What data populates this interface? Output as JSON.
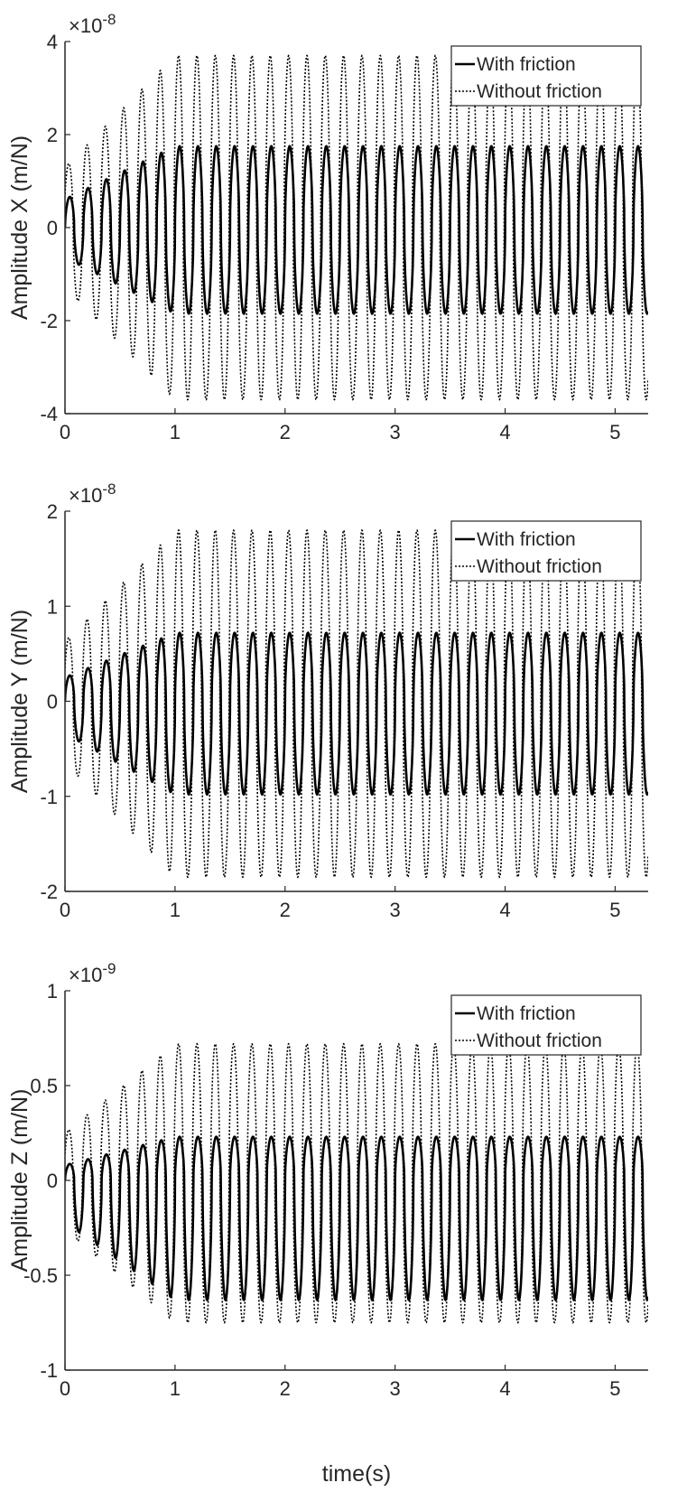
{
  "figure": {
    "xlabel": "time(s)",
    "legend_labels": [
      "With friction",
      "Without friction"
    ]
  },
  "chart_data": [
    {
      "type": "line",
      "ylabel": "Amplitude X (m/N)",
      "exponent_base": "×10",
      "exponent_power": "-8",
      "xlim": [
        0,
        5.3
      ],
      "ylim": [
        -4,
        4
      ],
      "x_ticks": [
        0,
        1,
        2,
        3,
        4,
        5
      ],
      "y_ticks": [
        -4,
        -2,
        0,
        2,
        4
      ],
      "legend_position": "top-right",
      "grid": false,
      "signal": {
        "frequency_hz": 6.0,
        "ramp_time_s": 1.0,
        "duration_s": 5.3
      },
      "series": [
        {
          "name": "With friction",
          "style": "solid",
          "color": "#000000",
          "peak_max": 1.75,
          "peak_min": -1.85
        },
        {
          "name": "Without friction",
          "style": "dotted",
          "color": "#000000",
          "peak_max": 3.7,
          "peak_min": -3.7
        }
      ]
    },
    {
      "type": "line",
      "ylabel": "Amplitude Y (m/N)",
      "exponent_base": "×10",
      "exponent_power": "-8",
      "xlim": [
        0,
        5.3
      ],
      "ylim": [
        -2,
        2
      ],
      "x_ticks": [
        0,
        1,
        2,
        3,
        4,
        5
      ],
      "y_ticks": [
        -2,
        -1,
        0,
        1,
        2
      ],
      "legend_position": "top-right",
      "grid": false,
      "signal": {
        "frequency_hz": 6.0,
        "ramp_time_s": 1.0,
        "duration_s": 5.3
      },
      "series": [
        {
          "name": "With friction",
          "style": "solid",
          "color": "#000000",
          "peak_max": 0.72,
          "peak_min": -0.98
        },
        {
          "name": "Without friction",
          "style": "dotted",
          "color": "#000000",
          "peak_max": 1.8,
          "peak_min": -1.85
        }
      ]
    },
    {
      "type": "line",
      "ylabel": "Amplitude Z (m/N)",
      "exponent_base": "×10",
      "exponent_power": "-9",
      "xlim": [
        0,
        5.3
      ],
      "ylim": [
        -1,
        1
      ],
      "x_ticks": [
        0,
        1,
        2,
        3,
        4,
        5
      ],
      "y_ticks": [
        -1,
        -0.5,
        0,
        0.5,
        1
      ],
      "legend_position": "top-right",
      "grid": false,
      "signal": {
        "frequency_hz": 6.0,
        "ramp_time_s": 1.0,
        "duration_s": 5.3
      },
      "series": [
        {
          "name": "With friction",
          "style": "solid",
          "color": "#000000",
          "peak_max": 0.23,
          "peak_min": -0.63
        },
        {
          "name": "Without friction",
          "style": "dotted",
          "color": "#000000",
          "peak_max": 0.72,
          "peak_min": -0.75
        }
      ]
    }
  ]
}
